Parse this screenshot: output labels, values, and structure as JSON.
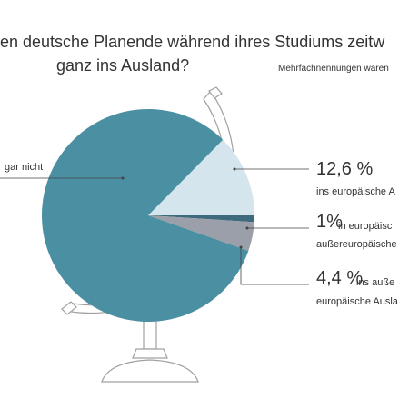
{
  "chart_data": {
    "type": "pie",
    "title": [
      "en deutsche Planende während ihres Studiums zeitw",
      "ganz ins Ausland?"
    ],
    "subtitle": "Mehrfachnennungen waren",
    "categories": [
      [
        "gar nicht"
      ],
      [
        "ins europäische A"
      ],
      [
        "in europäisc",
        "außereuropäische"
      ],
      [
        "ins auße",
        "europäische Ausla"
      ]
    ],
    "values": [
      82,
      12.6,
      1,
      4.4
    ],
    "value_labels": [
      null,
      "12,6 %",
      "1%",
      "4,4 %"
    ],
    "colors": [
      "#4b8fa3",
      "#d4e5ee",
      "#3d6b7d",
      "#9b9fa9"
    ]
  }
}
